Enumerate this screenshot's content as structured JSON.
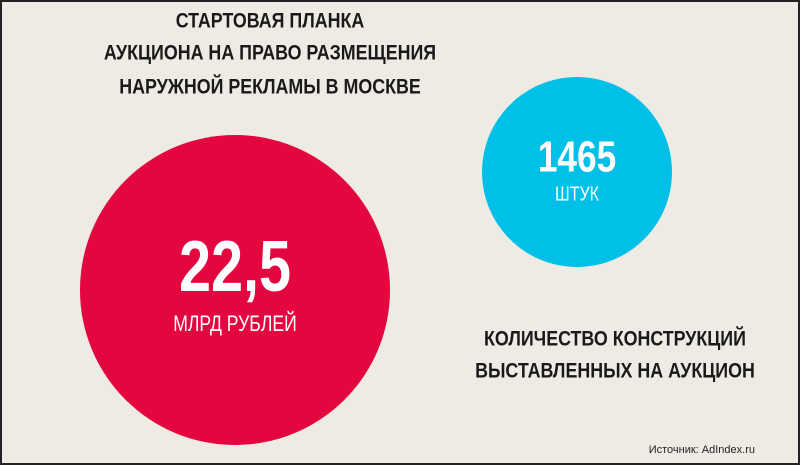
{
  "title": {
    "lines": [
      "СТАРТОВАЯ ПЛАНКА",
      "АУКЦИОНА НА ПРАВО РАЗМЕЩЕНИЯ",
      "НАРУЖНОЙ РЕКЛАМЫ В МОСКВЕ"
    ]
  },
  "left": {
    "value": "22,5",
    "unit": "МЛРД РУБЛЕЙ"
  },
  "right": {
    "value": "1465",
    "unit": "ШТУК",
    "caption": [
      "КОЛИЧЕСТВО КОНСТРУКЦИЙ",
      "ВЫСТАВЛЕННЫХ НА АУКЦИОН"
    ]
  },
  "source": "Источник: AdIndex.ru"
}
